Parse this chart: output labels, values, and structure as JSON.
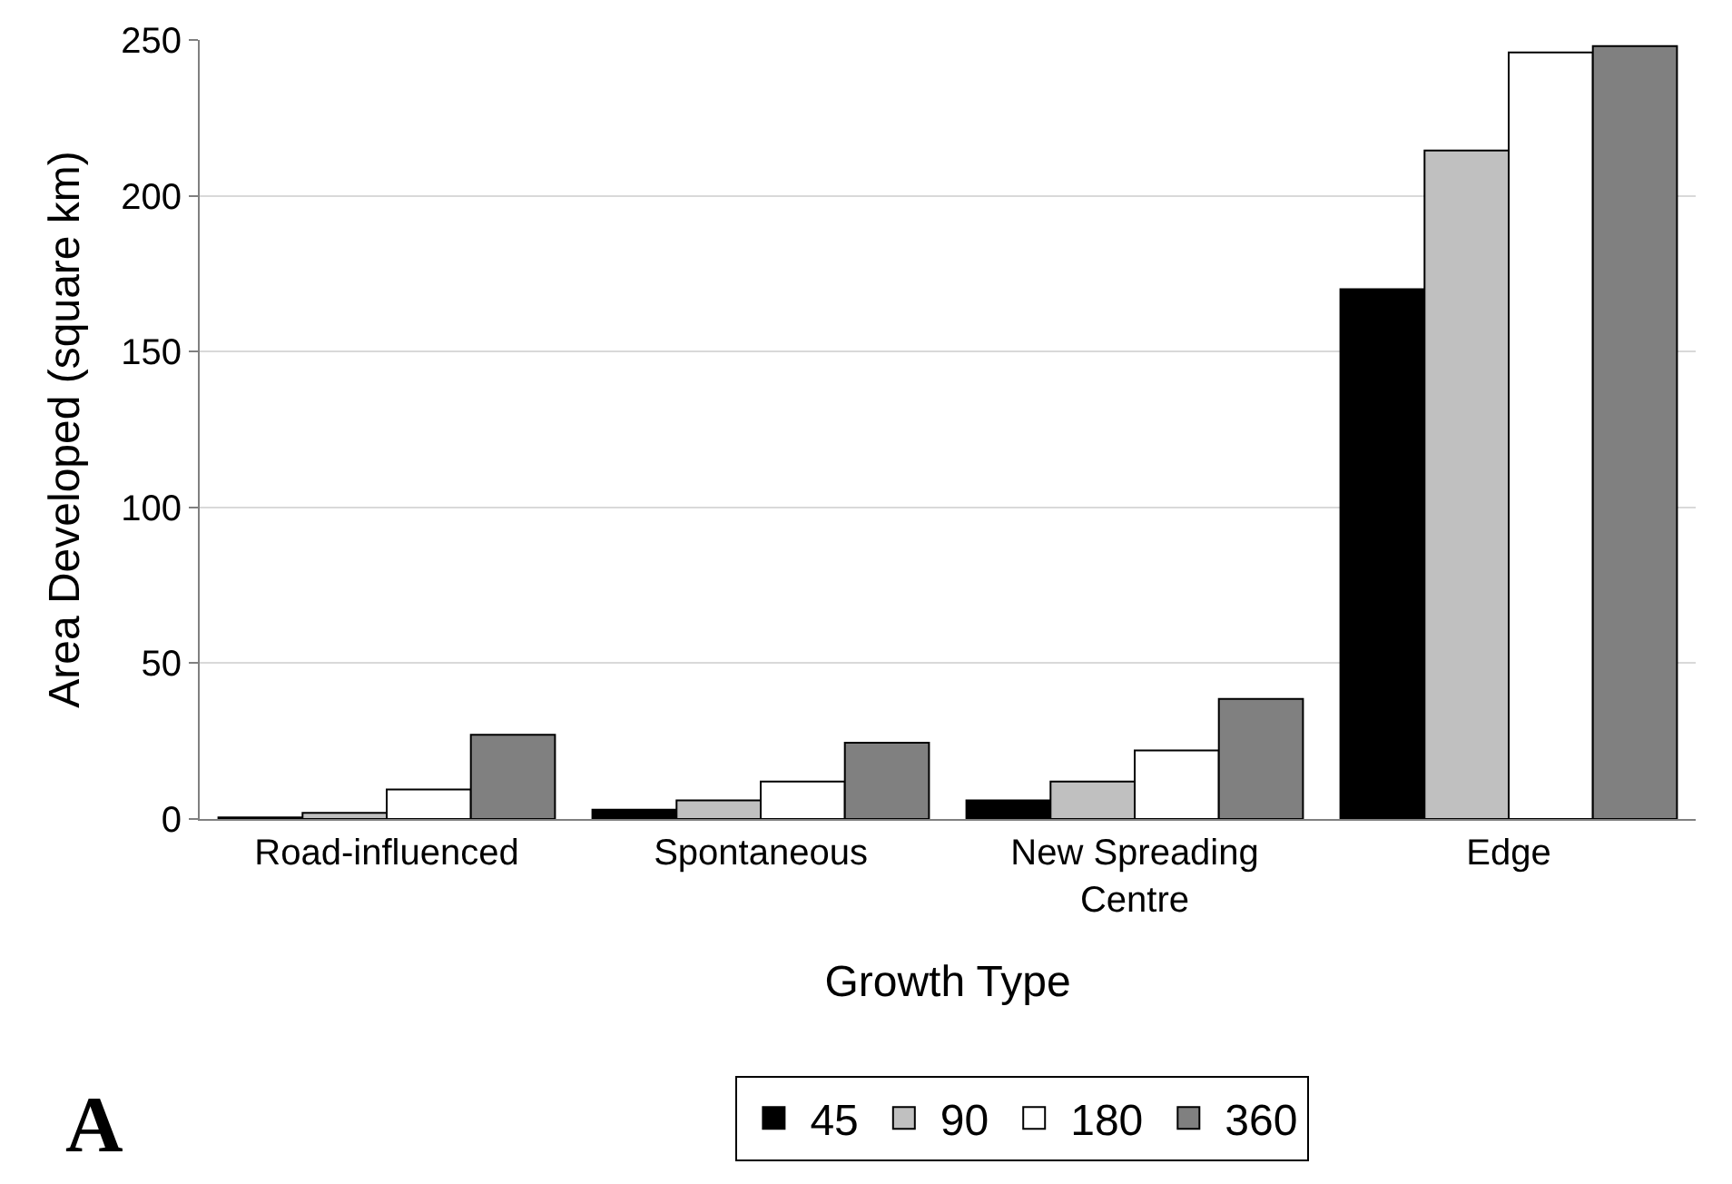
{
  "chart_data": {
    "type": "bar",
    "xlabel": "Growth Type",
    "ylabel": "Area Developed (square km)",
    "categories": [
      "Road-influenced",
      "Spontaneous",
      "New Spreading Centre",
      "Edge"
    ],
    "series": [
      {
        "name": "45",
        "color": "#000000",
        "values": [
          0.5,
          3,
          6,
          170
        ]
      },
      {
        "name": "90",
        "color": "#c0c0c0",
        "values": [
          2,
          6,
          12,
          214.5
        ]
      },
      {
        "name": "180",
        "color": "#ffffff",
        "values": [
          9.5,
          12,
          22,
          246
        ]
      },
      {
        "name": "360",
        "color": "#808080",
        "values": [
          27,
          24.5,
          38.5,
          248
        ]
      }
    ],
    "ylim": [
      0,
      250
    ],
    "yticks": [
      0,
      50,
      100,
      150,
      200,
      250
    ],
    "grid": "y",
    "legend": "bottom",
    "annotations": [
      "A"
    ]
  }
}
